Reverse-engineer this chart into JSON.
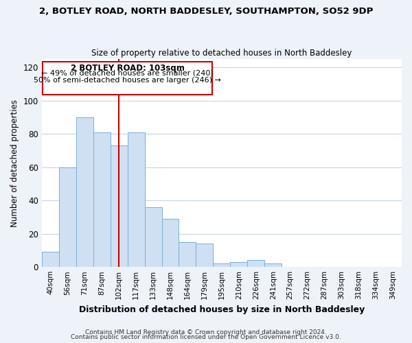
{
  "title1": "2, BOTLEY ROAD, NORTH BADDESLEY, SOUTHAMPTON, SO52 9DP",
  "title2": "Size of property relative to detached houses in North Baddesley",
  "xlabel": "Distribution of detached houses by size in North Baddesley",
  "ylabel": "Number of detached properties",
  "bar_color": "#cfe0f3",
  "bar_edge_color": "#7aaed6",
  "categories": [
    "40sqm",
    "56sqm",
    "71sqm",
    "87sqm",
    "102sqm",
    "117sqm",
    "133sqm",
    "148sqm",
    "164sqm",
    "179sqm",
    "195sqm",
    "210sqm",
    "226sqm",
    "241sqm",
    "257sqm",
    "272sqm",
    "287sqm",
    "303sqm",
    "318sqm",
    "334sqm",
    "349sqm"
  ],
  "values": [
    9,
    60,
    90,
    81,
    73,
    81,
    36,
    29,
    15,
    14,
    2,
    3,
    4,
    2,
    0,
    0,
    0,
    0,
    0,
    0,
    0
  ],
  "vline_x_idx": 4,
  "vline_color": "#cc0000",
  "annotation_title": "2 BOTLEY ROAD: 103sqm",
  "annotation_line1": "← 49% of detached houses are smaller (240)",
  "annotation_line2": "50% of semi-detached houses are larger (246) →",
  "annotation_box_edge": "#cc0000",
  "ylim": [
    0,
    125
  ],
  "yticks": [
    0,
    20,
    40,
    60,
    80,
    100,
    120
  ],
  "footer1": "Contains HM Land Registry data © Crown copyright and database right 2024.",
  "footer2": "Contains public sector information licensed under the Open Government Licence v3.0.",
  "background_color": "#eef2f9",
  "plot_background": "#ffffff"
}
